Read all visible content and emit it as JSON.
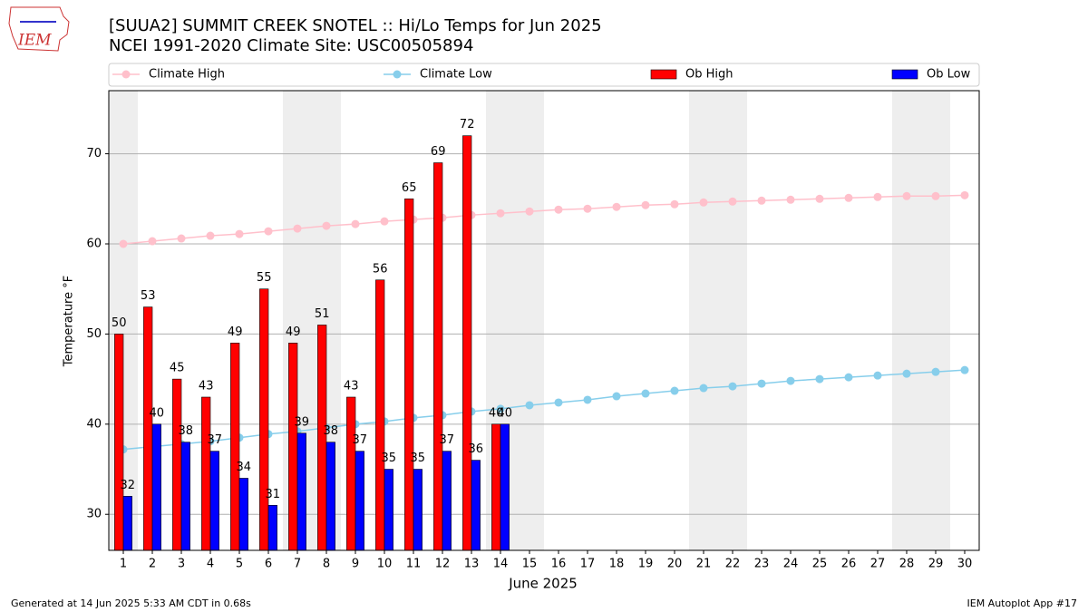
{
  "logo_text": "IEM",
  "chart_data": {
    "type": "bar-line",
    "title": "[SUUA2] SUMMIT CREEK SNOTEL :: Hi/Lo Temps for Jun 2025",
    "subtitle": "NCEI 1991-2020 Climate Site: USC00505894",
    "x_label": "June 2025",
    "y_label": "Temperature °F",
    "x": [
      1,
      2,
      3,
      4,
      5,
      6,
      7,
      8,
      9,
      10,
      11,
      12,
      13,
      14,
      15,
      16,
      17,
      18,
      19,
      20,
      21,
      22,
      23,
      24,
      25,
      26,
      27,
      28,
      29,
      30
    ],
    "xlim": [
      0.5,
      30.5
    ],
    "ylim": [
      26,
      77
    ],
    "yticks": [
      30,
      40,
      50,
      60,
      70
    ],
    "grid": true,
    "shaded_days": [
      1,
      7,
      8,
      14,
      15,
      21,
      22,
      28,
      29
    ],
    "series": [
      {
        "name": "Climate High",
        "kind": "line",
        "color": "#ffc0cb",
        "values": [
          60.0,
          60.3,
          60.6,
          60.9,
          61.1,
          61.4,
          61.7,
          62.0,
          62.2,
          62.5,
          62.7,
          62.9,
          63.2,
          63.4,
          63.6,
          63.8,
          63.9,
          64.1,
          64.3,
          64.4,
          64.6,
          64.7,
          64.8,
          64.9,
          65.0,
          65.1,
          65.2,
          65.3,
          65.3,
          65.4
        ]
      },
      {
        "name": "Climate Low",
        "kind": "line",
        "color": "#87ceeb",
        "values": [
          37.2,
          37.5,
          37.8,
          38.1,
          38.5,
          38.9,
          39.2,
          39.6,
          40.0,
          40.3,
          40.7,
          41.0,
          41.4,
          41.7,
          42.1,
          42.4,
          42.7,
          43.1,
          43.4,
          43.7,
          44.0,
          44.2,
          44.5,
          44.8,
          45.0,
          45.2,
          45.4,
          45.6,
          45.8,
          46.0
        ]
      },
      {
        "name": "Ob High",
        "kind": "bar",
        "color": "#ff0000",
        "values": [
          50,
          53,
          45,
          43,
          49,
          55,
          49,
          51,
          43,
          56,
          65,
          69,
          72,
          40,
          null,
          null,
          null,
          null,
          null,
          null,
          null,
          null,
          null,
          null,
          null,
          null,
          null,
          null,
          null,
          null
        ]
      },
      {
        "name": "Ob Low",
        "kind": "bar",
        "color": "#0000ff",
        "values": [
          32,
          40,
          38,
          37,
          34,
          31,
          39,
          38,
          37,
          35,
          35,
          37,
          36,
          40,
          null,
          null,
          null,
          null,
          null,
          null,
          null,
          null,
          null,
          null,
          null,
          null,
          null,
          null,
          null,
          null
        ]
      }
    ],
    "footer_left": "Generated at 14 Jun 2025 5:33 AM CDT in 0.68s",
    "footer_right": "IEM Autoplot App #17"
  }
}
